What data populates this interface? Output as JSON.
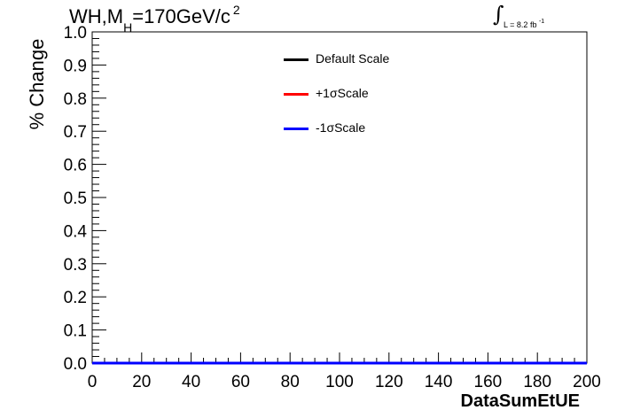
{
  "title": {
    "main": "WH,M",
    "sub": "H",
    "rest": "=170GeV/c",
    "sup": "2"
  },
  "lumi": {
    "integral": "∫",
    "text": "L = 8.2 fb",
    "sup": "-1"
  },
  "chart_data": {
    "type": "line",
    "xlabel": "DataSumEtUE",
    "ylabel": "% Change",
    "xlim": [
      0,
      200
    ],
    "ylim": [
      0,
      1.0
    ],
    "x_ticks": [
      "0",
      "20",
      "40",
      "60",
      "80",
      "100",
      "120",
      "140",
      "160",
      "180",
      "200"
    ],
    "y_ticks": [
      "0.0",
      "0.1",
      "0.2",
      "0.3",
      "0.4",
      "0.5",
      "0.6",
      "0.7",
      "0.8",
      "0.9",
      "1.0"
    ],
    "grid": false,
    "legend_position": "top-center",
    "series": [
      {
        "name": "Default Scale",
        "color": "#000000",
        "x": [
          0,
          200
        ],
        "y": [
          0,
          0
        ]
      },
      {
        "name": "+1σScale",
        "color": "#ff0000",
        "x": [
          0,
          200
        ],
        "y": [
          0,
          0
        ]
      },
      {
        "name": "-1σScale",
        "color": "#0000ff",
        "x": [
          0,
          200
        ],
        "y": [
          0,
          0
        ]
      }
    ]
  }
}
